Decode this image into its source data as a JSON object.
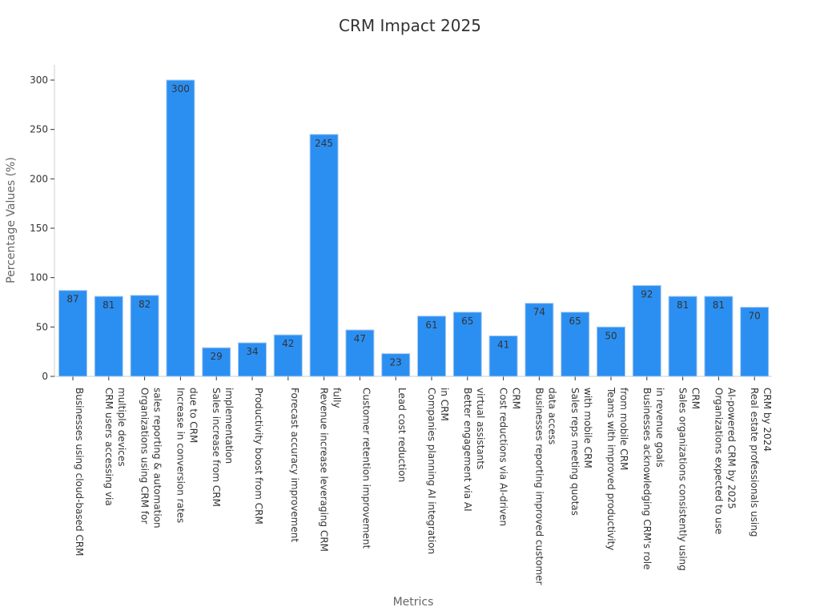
{
  "chart_data": {
    "type": "bar",
    "title": "CRM Impact 2025",
    "xlabel": "Metrics",
    "ylabel": "Percentage Values (%)",
    "ylim": [
      0,
      315
    ],
    "yticks": [
      0,
      50,
      100,
      150,
      200,
      250,
      300
    ],
    "grid": false,
    "bar_color": "#2b8ff2",
    "bar_edge_color": "#a9c9ee",
    "categories": [
      [
        "Businesses using cloud-based CRM"
      ],
      [
        "CRM users accessing via",
        "multiple devices"
      ],
      [
        "Organizations using CRM for",
        "sales reporting & automation"
      ],
      [
        "Increase in conversion rates",
        "due to CRM"
      ],
      [
        "Sales increase from CRM",
        "implementation"
      ],
      [
        "Productivity boost from CRM"
      ],
      [
        "Forecast accuracy improvement"
      ],
      [
        "Revenue increase leveraging CRM",
        "fully"
      ],
      [
        "Customer retention improvement"
      ],
      [
        "Lead cost reduction"
      ],
      [
        "Companies planning AI integration",
        "in CRM"
      ],
      [
        "Better engagement via AI",
        "virtual assistants"
      ],
      [
        "Cost reductions via AI-driven",
        "CRM"
      ],
      [
        "Businesses reporting improved customer",
        "data access"
      ],
      [
        "Sales reps meeting quotas",
        "with mobile CRM"
      ],
      [
        "Teams with improved productivity",
        "from mobile CRM"
      ],
      [
        "Businesses acknowledging CRM's role",
        "in revenue goals"
      ],
      [
        "Sales organizations consistently using",
        "CRM"
      ],
      [
        "Organizations expected to use",
        "AI-powered CRM by 2025"
      ],
      [
        "Real estate professionals using",
        "CRM by 2024"
      ]
    ],
    "values": [
      87,
      81,
      82,
      300,
      29,
      34,
      42,
      245,
      47,
      23,
      61,
      65,
      41,
      74,
      65,
      50,
      92,
      81,
      81,
      70
    ]
  }
}
